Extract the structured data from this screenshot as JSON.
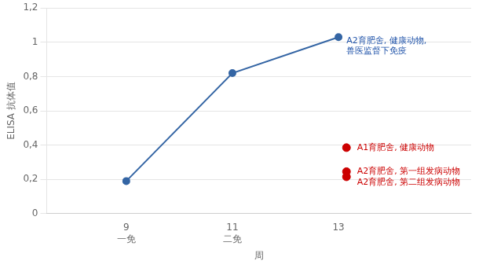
{
  "chart_data": {
    "type": "line",
    "xlabel": "周",
    "ylabel": "ELISA 抗体值",
    "xlim": [
      7.5,
      15.5
    ],
    "xticks": [
      {
        "value": 9,
        "label": "9\n一免"
      },
      {
        "value": 11,
        "label": "11\n二免"
      },
      13
    ],
    "ylim": [
      0,
      1.2
    ],
    "yticks": [
      0,
      {
        "value": 0.2,
        "label": "0,2"
      },
      {
        "value": 0.4,
        "label": "0,4"
      },
      {
        "value": 0.6,
        "label": "0,6"
      },
      {
        "value": 0.8,
        "label": "0,8"
      },
      1,
      {
        "value": 1.2,
        "label": "1,2"
      }
    ],
    "grid": "y",
    "series": [
      {
        "type": "line",
        "color": "#3465a4",
        "marker": "circle",
        "x": [
          9,
          11,
          13
        ],
        "values": [
          0.19,
          0.82,
          1.03
        ]
      },
      {
        "type": "scatter",
        "color": "#cc0000",
        "marker": "circle",
        "x": [
          13.15,
          13.15,
          13.15
        ],
        "values": [
          0.385,
          0.245,
          0.215
        ]
      }
    ],
    "annotations": [
      {
        "text": "A2育肥舍, 健康动物,\n兽医监督下免疫",
        "x": 13.15,
        "y": 0.98,
        "color": "#2255aa"
      },
      {
        "text": "A1育肥舍, 健康动物",
        "x": 13.35,
        "y": 0.385,
        "color": "#cc0000"
      },
      {
        "text": "A2育肥舍, 第一组发病动物",
        "x": 13.35,
        "y": 0.245,
        "color": "#cc0000"
      },
      {
        "text": "A2育肥舍, 第二组发病动物",
        "x": 13.35,
        "y": 0.215,
        "color": "#cc0000"
      }
    ]
  }
}
